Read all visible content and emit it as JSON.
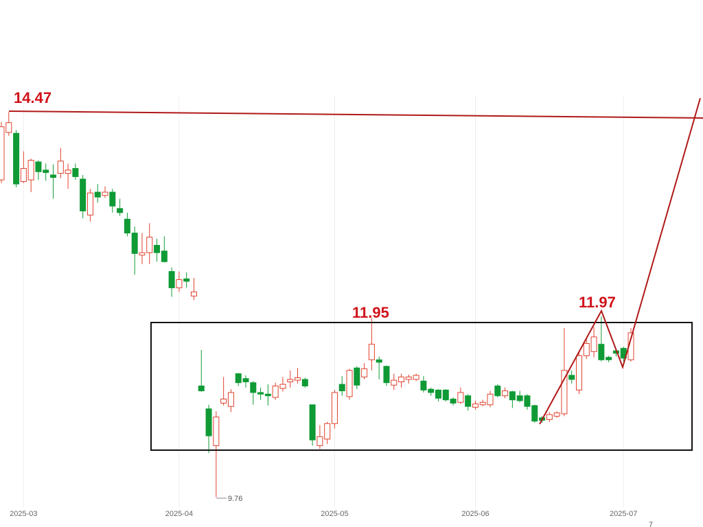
{
  "chart_data": {
    "type": "candlestick",
    "up_color": "#e0412c",
    "down_color": "#0f9a35",
    "ylim": [
      9.63,
      15.84
    ],
    "xlim": [
      0,
      85
    ],
    "xticks": [
      {
        "value": 3,
        "label": "2025-03"
      },
      {
        "value": 24,
        "label": "2025-04"
      },
      {
        "value": 45,
        "label": "2025-05"
      },
      {
        "value": 64,
        "label": "2025-06"
      },
      {
        "value": 84,
        "label": "2025-07"
      }
    ],
    "open": [
      13.64,
      14.22,
      14.21,
      13.62,
      13.64,
      13.86,
      13.76,
      13.7,
      13.72,
      13.72,
      13.78,
      13.65,
      13.21,
      13.49,
      13.45,
      13.49,
      13.29,
      13.16,
      12.99,
      12.72,
      12.75,
      12.84,
      12.77,
      12.52,
      12.32,
      12.43,
      12.22,
      11.12,
      10.84,
      10.39,
      10.91,
      10.87,
      11.27,
      11.21,
      11.16,
      11.04,
      11.02,
      10.98,
      11.09,
      11.17,
      11.19,
      11.2,
      10.89,
      10.39,
      10.47,
      10.66,
      11.14,
      10.99,
      11.34,
      11.23,
      11.44,
      11.44,
      11.36,
      11.13,
      11.17,
      11.2,
      11.2,
      11.18,
      11.08,
      11.07,
      11.07,
      10.96,
      10.92,
      11.0,
      10.86,
      10.89,
      10.89,
      11.12,
      11.0,
      11.05,
      11.0,
      11.0,
      10.88,
      10.73,
      10.71,
      10.75,
      10.78,
      11.25,
      11.07,
      11.49,
      11.54,
      11.63,
      11.47,
      11.55,
      11.58,
      11.44
    ],
    "high": [
      14.35,
      14.47,
      14.25,
      13.99,
      13.9,
      13.88,
      13.84,
      13.83,
      14.03,
      13.84,
      13.84,
      13.7,
      13.53,
      13.59,
      13.56,
      13.53,
      13.41,
      13.24,
      13.07,
      12.99,
      13.11,
      12.92,
      12.95,
      12.57,
      12.52,
      12.51,
      12.44,
      11.56,
      10.89,
      10.81,
      11.23,
      11.08,
      11.28,
      11.25,
      11.18,
      11.1,
      11.14,
      11.16,
      11.23,
      11.31,
      11.34,
      11.22,
      10.89,
      10.64,
      10.68,
      11.07,
      11.24,
      11.33,
      11.36,
      11.4,
      11.95,
      11.48,
      11.37,
      11.27,
      11.27,
      11.26,
      11.27,
      11.24,
      11.1,
      11.08,
      11.08,
      10.98,
      11.1,
      11.02,
      10.94,
      10.95,
      11.06,
      11.14,
      11.1,
      11.06,
      11.06,
      11.02,
      10.89,
      10.75,
      10.8,
      10.81,
      11.83,
      11.31,
      11.55,
      11.69,
      11.84,
      11.97,
      11.49,
      11.58,
      11.6,
      11.83
    ],
    "low": [
      13.6,
      14.18,
      13.55,
      13.6,
      13.49,
      13.64,
      13.63,
      13.41,
      13.66,
      13.53,
      13.64,
      13.17,
      13.13,
      13.36,
      13.42,
      13.24,
      13.2,
      12.95,
      12.48,
      12.61,
      12.61,
      12.64,
      12.63,
      12.21,
      12.27,
      12.32,
      12.17,
      11.05,
      10.3,
      9.76,
      10.88,
      10.8,
      11.12,
      11.1,
      10.89,
      10.95,
      10.88,
      10.95,
      11.05,
      11.1,
      11.15,
      11.1,
      10.39,
      10.35,
      10.41,
      10.6,
      11.0,
      10.95,
      11.08,
      11.2,
      11.31,
      11.2,
      11.12,
      11.07,
      11.1,
      11.15,
      11.18,
      11.04,
      11.0,
      10.93,
      10.93,
      10.88,
      10.9,
      10.82,
      10.83,
      10.87,
      10.86,
      10.98,
      10.97,
      10.85,
      10.92,
      10.83,
      10.67,
      10.67,
      10.68,
      10.73,
      10.75,
      11.15,
      11.02,
      11.45,
      11.47,
      11.42,
      11.41,
      11.48,
      11.42,
      11.42
    ],
    "close": [
      14.29,
      14.34,
      13.59,
      13.78,
      13.88,
      13.74,
      13.73,
      13.67,
      13.87,
      13.76,
      13.68,
      13.26,
      13.48,
      13.43,
      13.49,
      13.32,
      13.24,
      12.99,
      12.74,
      12.75,
      12.94,
      12.75,
      12.64,
      12.32,
      12.42,
      12.4,
      12.27,
      11.06,
      10.51,
      10.74,
      10.96,
      11.04,
      11.16,
      11.17,
      11.04,
      11.02,
      11.0,
      11.12,
      11.14,
      11.2,
      11.22,
      11.12,
      10.46,
      10.5,
      10.66,
      11.04,
      11.06,
      11.31,
      11.13,
      11.33,
      11.63,
      11.41,
      11.16,
      11.19,
      11.23,
      11.23,
      11.25,
      11.07,
      11.04,
      10.97,
      10.95,
      10.91,
      11.04,
      10.87,
      10.9,
      10.92,
      11.02,
      11.0,
      11.06,
      10.95,
      10.94,
      10.87,
      10.69,
      10.7,
      10.77,
      10.79,
      11.31,
      11.2,
      11.49,
      11.64,
      11.72,
      11.44,
      11.44,
      11.52,
      11.46,
      11.77
    ],
    "annotations": [
      "14.47",
      "11.95",
      "11.97",
      "9.76",
      "7"
    ]
  }
}
